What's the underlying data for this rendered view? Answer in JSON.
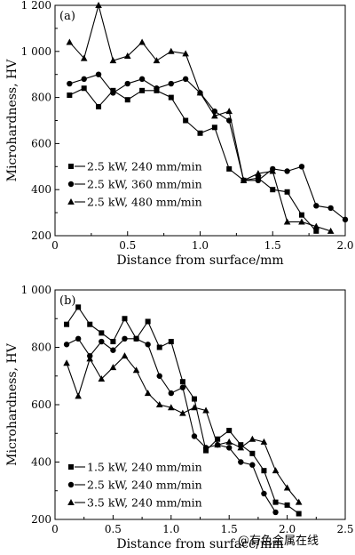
{
  "watermark": "@有色金属在线",
  "chart_data": [
    {
      "type": "line",
      "panel_label": "(a)",
      "xlabel": "Distance from surface/mm",
      "ylabel": "Microhardness, HV",
      "xlim": [
        0,
        2.0
      ],
      "ylim": [
        200,
        1200
      ],
      "xticks": [
        0,
        0.5,
        1.0,
        1.5,
        2.0
      ],
      "xtick_labels": [
        "0",
        "0.5",
        "1.0",
        "1.5",
        "2.0"
      ],
      "yticks": [
        200,
        400,
        600,
        800,
        1000,
        1200
      ],
      "ytick_labels": [
        "200",
        "400",
        "600",
        "800",
        "1 000",
        "1 200"
      ],
      "grid": false,
      "legend_position": "lower-left",
      "series": [
        {
          "name": "2.5 kW, 240 mm/min",
          "marker": "square",
          "x": [
            0.1,
            0.2,
            0.3,
            0.4,
            0.5,
            0.6,
            0.7,
            0.8,
            0.9,
            1.0,
            1.1,
            1.2,
            1.3,
            1.4,
            1.5,
            1.6,
            1.7,
            1.8
          ],
          "y": [
            810,
            840,
            760,
            830,
            790,
            830,
            830,
            800,
            700,
            645,
            670,
            490,
            440,
            450,
            400,
            390,
            290,
            220
          ]
        },
        {
          "name": "2.5 kW, 360 mm/min",
          "marker": "circle",
          "x": [
            0.1,
            0.2,
            0.3,
            0.4,
            0.5,
            0.6,
            0.7,
            0.8,
            0.9,
            1.0,
            1.1,
            1.2,
            1.3,
            1.4,
            1.5,
            1.6,
            1.7,
            1.8,
            1.9,
            2.0
          ],
          "y": [
            860,
            880,
            900,
            820,
            860,
            880,
            840,
            860,
            880,
            820,
            740,
            700,
            440,
            440,
            490,
            480,
            500,
            330,
            320,
            270
          ]
        },
        {
          "name": "2.5 kW, 480 mm/min",
          "marker": "triangle",
          "x": [
            0.1,
            0.2,
            0.3,
            0.4,
            0.5,
            0.6,
            0.7,
            0.8,
            0.9,
            1.0,
            1.1,
            1.2,
            1.3,
            1.4,
            1.5,
            1.6,
            1.7,
            1.8,
            1.9
          ],
          "y": [
            1040,
            970,
            1200,
            960,
            980,
            1040,
            960,
            1000,
            990,
            820,
            720,
            740,
            440,
            470,
            480,
            260,
            260,
            240,
            220
          ]
        }
      ]
    },
    {
      "type": "line",
      "panel_label": "(b)",
      "xlabel": "Distance from surface/mm",
      "ylabel": "Microhardness, HV",
      "xlim": [
        0,
        2.5
      ],
      "ylim": [
        200,
        1000
      ],
      "xticks": [
        0,
        0.5,
        1.0,
        1.5,
        2.0,
        2.5
      ],
      "xtick_labels": [
        "0",
        "0.5",
        "1.0",
        "1.5",
        "2.0",
        "2.5"
      ],
      "yticks": [
        200,
        400,
        600,
        800,
        1000
      ],
      "ytick_labels": [
        "200",
        "400",
        "600",
        "800",
        "1 000"
      ],
      "grid": false,
      "legend_position": "lower-left",
      "series": [
        {
          "name": "1.5 kW, 240 mm/min",
          "marker": "square",
          "x": [
            0.1,
            0.2,
            0.3,
            0.4,
            0.5,
            0.6,
            0.7,
            0.8,
            0.9,
            1.0,
            1.1,
            1.2,
            1.3,
            1.4,
            1.5,
            1.6,
            1.7,
            1.8,
            1.9,
            2.0,
            2.1
          ],
          "y": [
            880,
            940,
            880,
            850,
            820,
            900,
            830,
            890,
            800,
            820,
            680,
            620,
            440,
            480,
            510,
            460,
            430,
            370,
            260,
            250,
            220
          ]
        },
        {
          "name": "2.5 kW, 240 mm/min",
          "marker": "circle",
          "x": [
            0.1,
            0.2,
            0.3,
            0.4,
            0.5,
            0.6,
            0.7,
            0.8,
            0.9,
            1.0,
            1.1,
            1.2,
            1.3,
            1.4,
            1.5,
            1.6,
            1.7,
            1.8,
            1.9,
            2.0
          ],
          "y": [
            810,
            830,
            770,
            820,
            790,
            830,
            830,
            810,
            700,
            640,
            660,
            490,
            450,
            460,
            450,
            400,
            390,
            290,
            225,
            null
          ]
        },
        {
          "name": "3.5 kW, 240 mm/min",
          "marker": "triangle",
          "x": [
            0.1,
            0.2,
            0.3,
            0.4,
            0.5,
            0.6,
            0.7,
            0.8,
            0.9,
            1.0,
            1.1,
            1.2,
            1.3,
            1.4,
            1.5,
            1.6,
            1.7,
            1.8,
            1.9,
            2.0,
            2.1
          ],
          "y": [
            745,
            630,
            760,
            690,
            730,
            770,
            720,
            640,
            600,
            590,
            570,
            590,
            580,
            460,
            470,
            450,
            480,
            470,
            370,
            310,
            260
          ]
        }
      ]
    }
  ]
}
